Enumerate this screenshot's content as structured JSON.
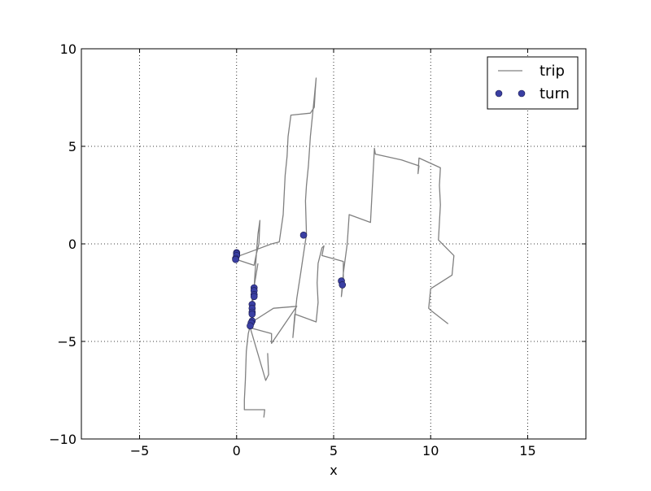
{
  "chart_data": {
    "type": "line",
    "title": "",
    "xlabel": "x",
    "ylabel": "",
    "xlim": [
      -8,
      18
    ],
    "ylim": [
      -10,
      10
    ],
    "xticks": [
      -5,
      0,
      5,
      10,
      15
    ],
    "yticks": [
      -10,
      -5,
      0,
      5,
      10
    ],
    "grid": true,
    "legend": {
      "placement": "top-right",
      "entries": [
        "trip",
        "turn"
      ]
    },
    "colors": {
      "trip": "#808080",
      "turn": "#3a3fa3",
      "turn_edge": "#1a1a4a"
    },
    "series": [
      {
        "name": "trip",
        "kind": "line",
        "points": [
          [
            1.4,
            -8.9
          ],
          [
            1.45,
            -8.5
          ],
          [
            0.4,
            -8.5
          ],
          [
            0.4,
            -8.0
          ],
          [
            0.45,
            -7.0
          ],
          [
            0.5,
            -5.5
          ],
          [
            0.6,
            -4.6
          ],
          [
            0.7,
            -4.2
          ],
          [
            0.8,
            -3.8
          ],
          [
            0.8,
            -3.3
          ],
          [
            0.85,
            -2.8
          ],
          [
            0.9,
            -2.3
          ],
          [
            0.95,
            -1.5
          ],
          [
            1.0,
            -0.8
          ],
          [
            1.05,
            -0.1
          ],
          [
            1.1,
            0.5
          ],
          [
            1.2,
            1.2
          ],
          [
            1.15,
            0.0
          ],
          [
            1.0,
            -0.6
          ],
          [
            0.9,
            -1.1
          ],
          [
            0.0,
            -0.8
          ],
          [
            -0.1,
            -0.7
          ],
          [
            1.0,
            -0.3
          ],
          [
            1.8,
            0.0
          ],
          [
            2.2,
            0.1
          ],
          [
            2.4,
            1.5
          ],
          [
            2.45,
            2.5
          ],
          [
            2.5,
            3.5
          ],
          [
            2.6,
            4.5
          ],
          [
            2.65,
            5.5
          ],
          [
            2.8,
            6.6
          ],
          [
            3.8,
            6.7
          ],
          [
            4.0,
            7.0
          ],
          [
            4.05,
            7.8
          ],
          [
            4.1,
            8.5
          ],
          [
            4.0,
            7.5
          ],
          [
            3.8,
            5.5
          ],
          [
            3.7,
            4.0
          ],
          [
            3.6,
            3.0
          ],
          [
            3.55,
            2.2
          ],
          [
            3.6,
            0.5
          ],
          [
            3.3,
            -1.5
          ],
          [
            3.1,
            -2.8
          ],
          [
            2.9,
            -4.8
          ],
          [
            3.0,
            -3.6
          ],
          [
            4.1,
            -4.0
          ],
          [
            4.2,
            -3.0
          ],
          [
            4.15,
            -2.0
          ],
          [
            4.2,
            -1.0
          ],
          [
            4.4,
            -0.2
          ],
          [
            4.5,
            -0.1
          ],
          [
            4.4,
            -0.6
          ],
          [
            5.5,
            -0.9
          ],
          [
            5.5,
            -1.9
          ],
          [
            5.4,
            -2.7
          ],
          [
            5.5,
            -1.5
          ],
          [
            5.7,
            0.0
          ],
          [
            5.8,
            1.5
          ],
          [
            6.9,
            1.1
          ],
          [
            7.0,
            3.0
          ],
          [
            7.1,
            4.9
          ],
          [
            7.15,
            4.6
          ],
          [
            8.5,
            4.3
          ],
          [
            9.4,
            4.0
          ],
          [
            9.35,
            3.6
          ],
          [
            9.4,
            4.4
          ],
          [
            10.5,
            3.9
          ],
          [
            10.45,
            3.0
          ],
          [
            10.5,
            2.0
          ],
          [
            10.4,
            0.2
          ],
          [
            11.2,
            -0.6
          ],
          [
            11.1,
            -1.6
          ],
          [
            10.0,
            -2.3
          ],
          [
            9.9,
            -3.3
          ],
          [
            10.0,
            -3.4
          ],
          [
            10.9,
            -4.1
          ]
        ]
      },
      {
        "name": "",
        "kind": "line",
        "points": [
          [
            1.6,
            -5.6
          ],
          [
            1.65,
            -6.7
          ],
          [
            1.5,
            -7.0
          ],
          [
            0.7,
            -4.3
          ],
          [
            1.8,
            -4.6
          ],
          [
            1.8,
            -5.1
          ],
          [
            3.1,
            -3.2
          ],
          [
            1.9,
            -3.3
          ],
          [
            0.8,
            -4.0
          ],
          [
            0.8,
            -2.8
          ],
          [
            1.1,
            -1.0
          ]
        ]
      },
      {
        "name": "turn",
        "kind": "scatter",
        "points": [
          [
            0.0,
            -0.45
          ],
          [
            0.0,
            -0.5
          ],
          [
            0.0,
            -0.6
          ],
          [
            -0.05,
            -0.75
          ],
          [
            -0.05,
            -0.8
          ],
          [
            0.9,
            -2.25
          ],
          [
            0.9,
            -2.4
          ],
          [
            0.9,
            -2.6
          ],
          [
            0.9,
            -2.7
          ],
          [
            0.8,
            -3.1
          ],
          [
            0.8,
            -3.3
          ],
          [
            0.8,
            -3.5
          ],
          [
            0.8,
            -3.6
          ],
          [
            0.8,
            -3.95
          ],
          [
            0.75,
            -4.05
          ],
          [
            0.7,
            -4.2
          ],
          [
            3.45,
            0.45
          ],
          [
            5.4,
            -1.9
          ],
          [
            5.45,
            -2.1
          ]
        ]
      }
    ]
  }
}
